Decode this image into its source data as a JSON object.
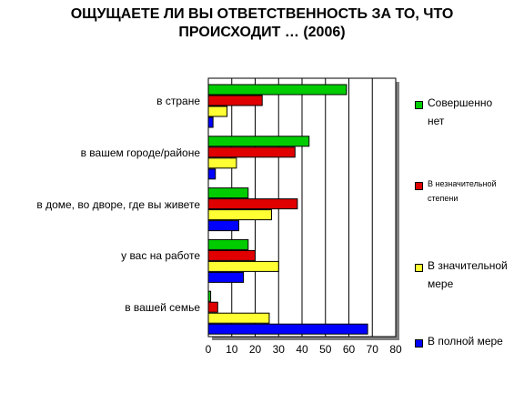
{
  "title_line1": "ОЩУЩАЕТЕ ЛИ ВЫ ОТВЕТСТВЕННОСТЬ ЗА ТО, ЧТО",
  "title_line2": "ПРОИСХОДИТ … (2006)",
  "chart_data": {
    "type": "bar",
    "orientation": "horizontal",
    "title": "ОЩУЩАЕТЕ ЛИ ВЫ ОТВЕТСТВЕННОСТЬ ЗА ТО, ЧТО ПРОИСХОДИТ … (2006)",
    "categories": [
      "в стране",
      "в вашем городе/районе",
      "в доме, во дворе, где вы живете",
      "у вас на работе",
      "в вашей семье"
    ],
    "series": [
      {
        "name": "Совершенно нет",
        "color": "#00cc00",
        "values": [
          59,
          43,
          17,
          17,
          1
        ]
      },
      {
        "name": "В незначительной степени",
        "color": "#e00000",
        "values": [
          23,
          37,
          38,
          20,
          4
        ]
      },
      {
        "name": "В значительной мере",
        "color": "#ffff33",
        "values": [
          8,
          12,
          27,
          30,
          26
        ]
      },
      {
        "name": "В полной мере",
        "color": "#0000ff",
        "values": [
          2,
          3,
          13,
          15,
          68
        ]
      }
    ],
    "xlim": [
      0,
      80
    ],
    "xticks": [
      "0",
      "10",
      "20",
      "30",
      "40",
      "50",
      "60",
      "70",
      "80"
    ],
    "grid": true,
    "legend": "right"
  },
  "legend_lines": [
    [
      "Совершенно",
      "нет"
    ],
    [
      "В незначительной",
      "степени"
    ],
    [
      "В значительной",
      "мере"
    ],
    [
      "В полной мере"
    ]
  ]
}
